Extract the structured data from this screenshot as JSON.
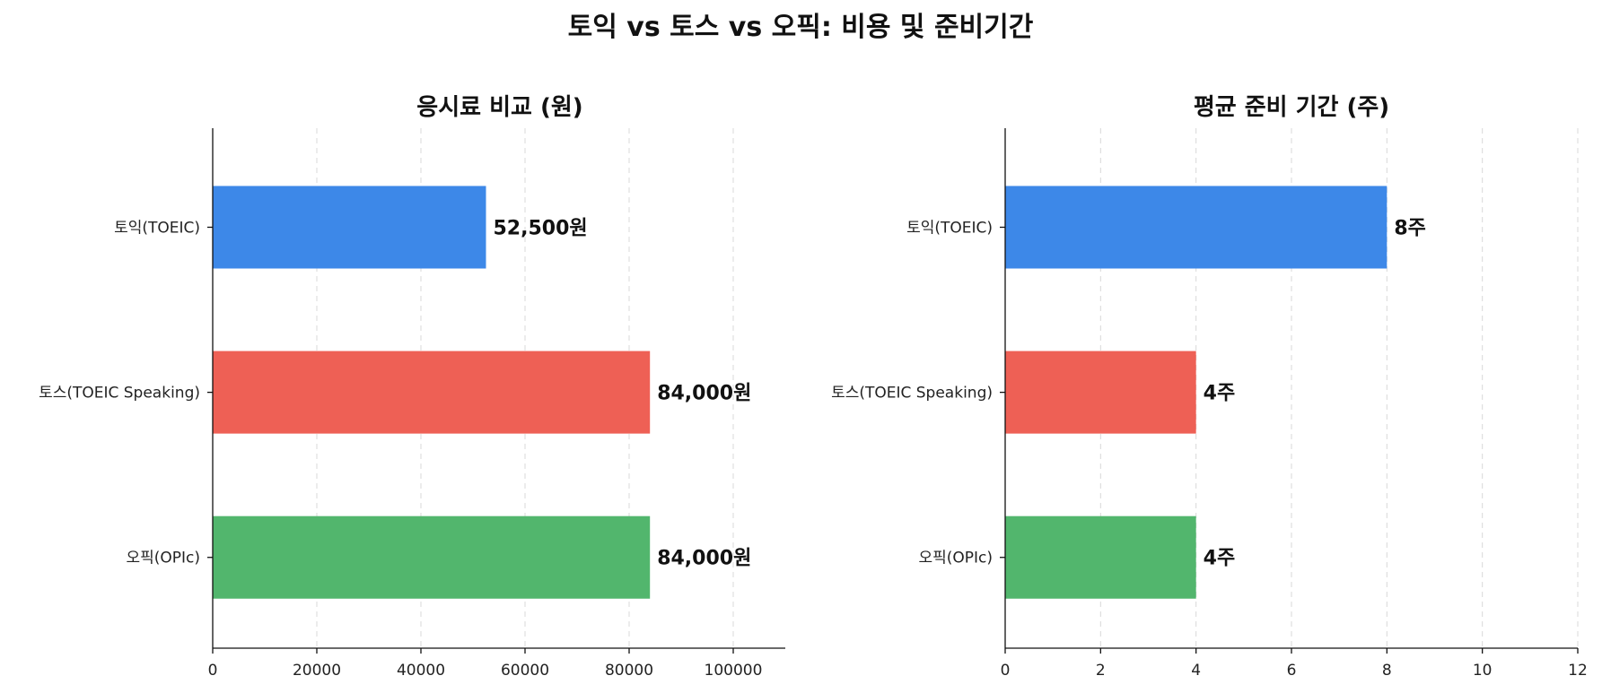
{
  "figure": {
    "suptitle": "토익 vs 토스 vs 오픽: 비용 및 준비기간"
  },
  "chart_data": [
    {
      "type": "bar",
      "orientation": "horizontal",
      "title": "응시료 비교 (원)",
      "xlabel": "",
      "ylabel": "",
      "categories": [
        "토익(TOEIC)",
        "토스(TOEIC Speaking)",
        "오픽(OPIc)"
      ],
      "values": [
        52500,
        84000,
        84000
      ],
      "data_labels": [
        "52,500원",
        "84,000원",
        "84,000원"
      ],
      "colors": [
        "#3d88e8",
        "#ee6055",
        "#52b66d"
      ],
      "xlim": [
        0,
        110000
      ],
      "xticks": [
        0,
        20000,
        40000,
        60000,
        80000,
        100000
      ],
      "xtick_labels": [
        "0",
        "20000",
        "40000",
        "60000",
        "80000",
        "100000"
      ],
      "grid": "x-dashed",
      "legend": "none"
    },
    {
      "type": "bar",
      "orientation": "horizontal",
      "title": "평균 준비 기간 (주)",
      "xlabel": "",
      "ylabel": "",
      "categories": [
        "토익(TOEIC)",
        "토스(TOEIC Speaking)",
        "오픽(OPIc)"
      ],
      "values": [
        8,
        4,
        4
      ],
      "data_labels": [
        "8주",
        "4주",
        "4주"
      ],
      "colors": [
        "#3d88e8",
        "#ee6055",
        "#52b66d"
      ],
      "xlim": [
        0,
        12
      ],
      "xticks": [
        0,
        2,
        4,
        6,
        8,
        10,
        12
      ],
      "xtick_labels": [
        "0",
        "2",
        "4",
        "6",
        "8",
        "10",
        "12"
      ],
      "grid": "x-dashed",
      "legend": "none"
    }
  ]
}
